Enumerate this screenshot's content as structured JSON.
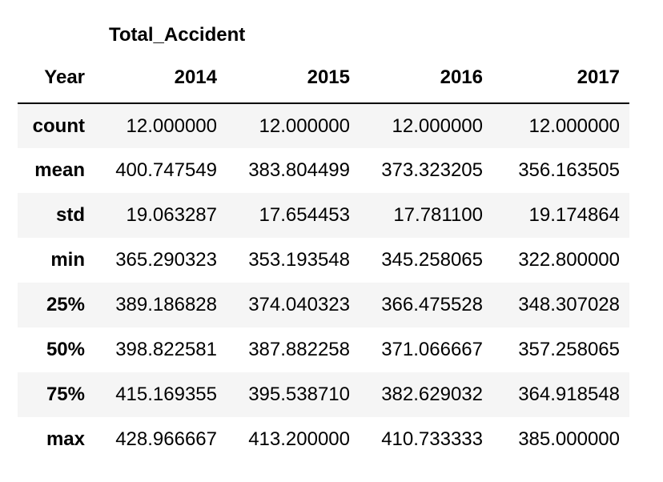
{
  "table": {
    "top_label": "Total_Accident",
    "index_name": "Year",
    "columns": [
      "2014",
      "2015",
      "2016",
      "2017"
    ],
    "rows": [
      {
        "label": "count",
        "values": [
          "12.000000",
          "12.000000",
          "12.000000",
          "12.000000"
        ]
      },
      {
        "label": "mean",
        "values": [
          "400.747549",
          "383.804499",
          "373.323205",
          "356.163505"
        ]
      },
      {
        "label": "std",
        "values": [
          "19.063287",
          "17.654453",
          "17.781100",
          "19.174864"
        ]
      },
      {
        "label": "min",
        "values": [
          "365.290323",
          "353.193548",
          "345.258065",
          "322.800000"
        ]
      },
      {
        "label": "25%",
        "values": [
          "389.186828",
          "374.040323",
          "366.475528",
          "348.307028"
        ]
      },
      {
        "label": "50%",
        "values": [
          "398.822581",
          "387.882258",
          "371.066667",
          "357.258065"
        ]
      },
      {
        "label": "75%",
        "values": [
          "415.169355",
          "395.538710",
          "382.629032",
          "364.918548"
        ]
      },
      {
        "label": "max",
        "values": [
          "428.966667",
          "413.200000",
          "410.733333",
          "385.000000"
        ]
      }
    ]
  }
}
